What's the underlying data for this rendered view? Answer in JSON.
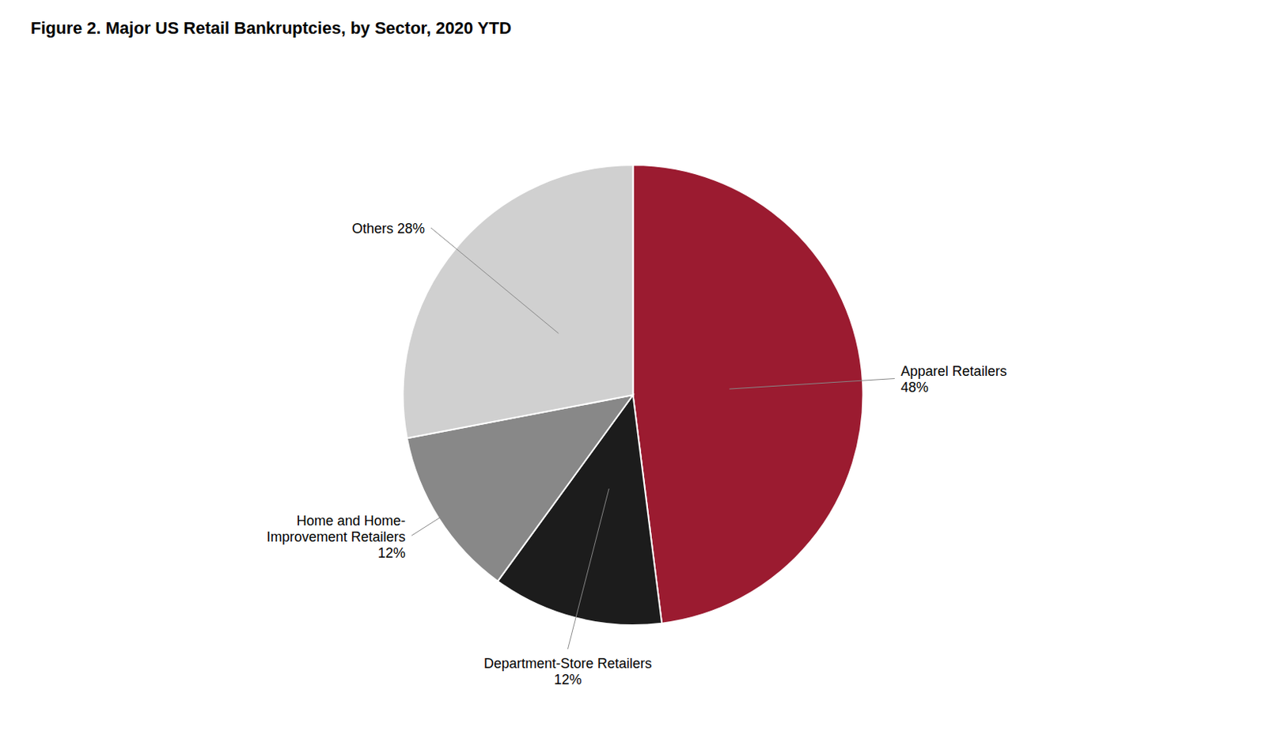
{
  "chart_data": {
    "type": "pie",
    "title": "Figure 2. Major US Retail Bankruptcies, by Sector, 2020 YTD",
    "categories": [
      "Apparel Retailers\n48%",
      "Department-Store Retailers\n12%",
      "Home and Home-\nImprovement Retailers\n12%",
      "Others 28%"
    ],
    "values": [
      48,
      12,
      12,
      28
    ],
    "colors": [
      "#9B1B30",
      "#1C1C1C",
      "#888888",
      "#D0D0D0"
    ]
  }
}
